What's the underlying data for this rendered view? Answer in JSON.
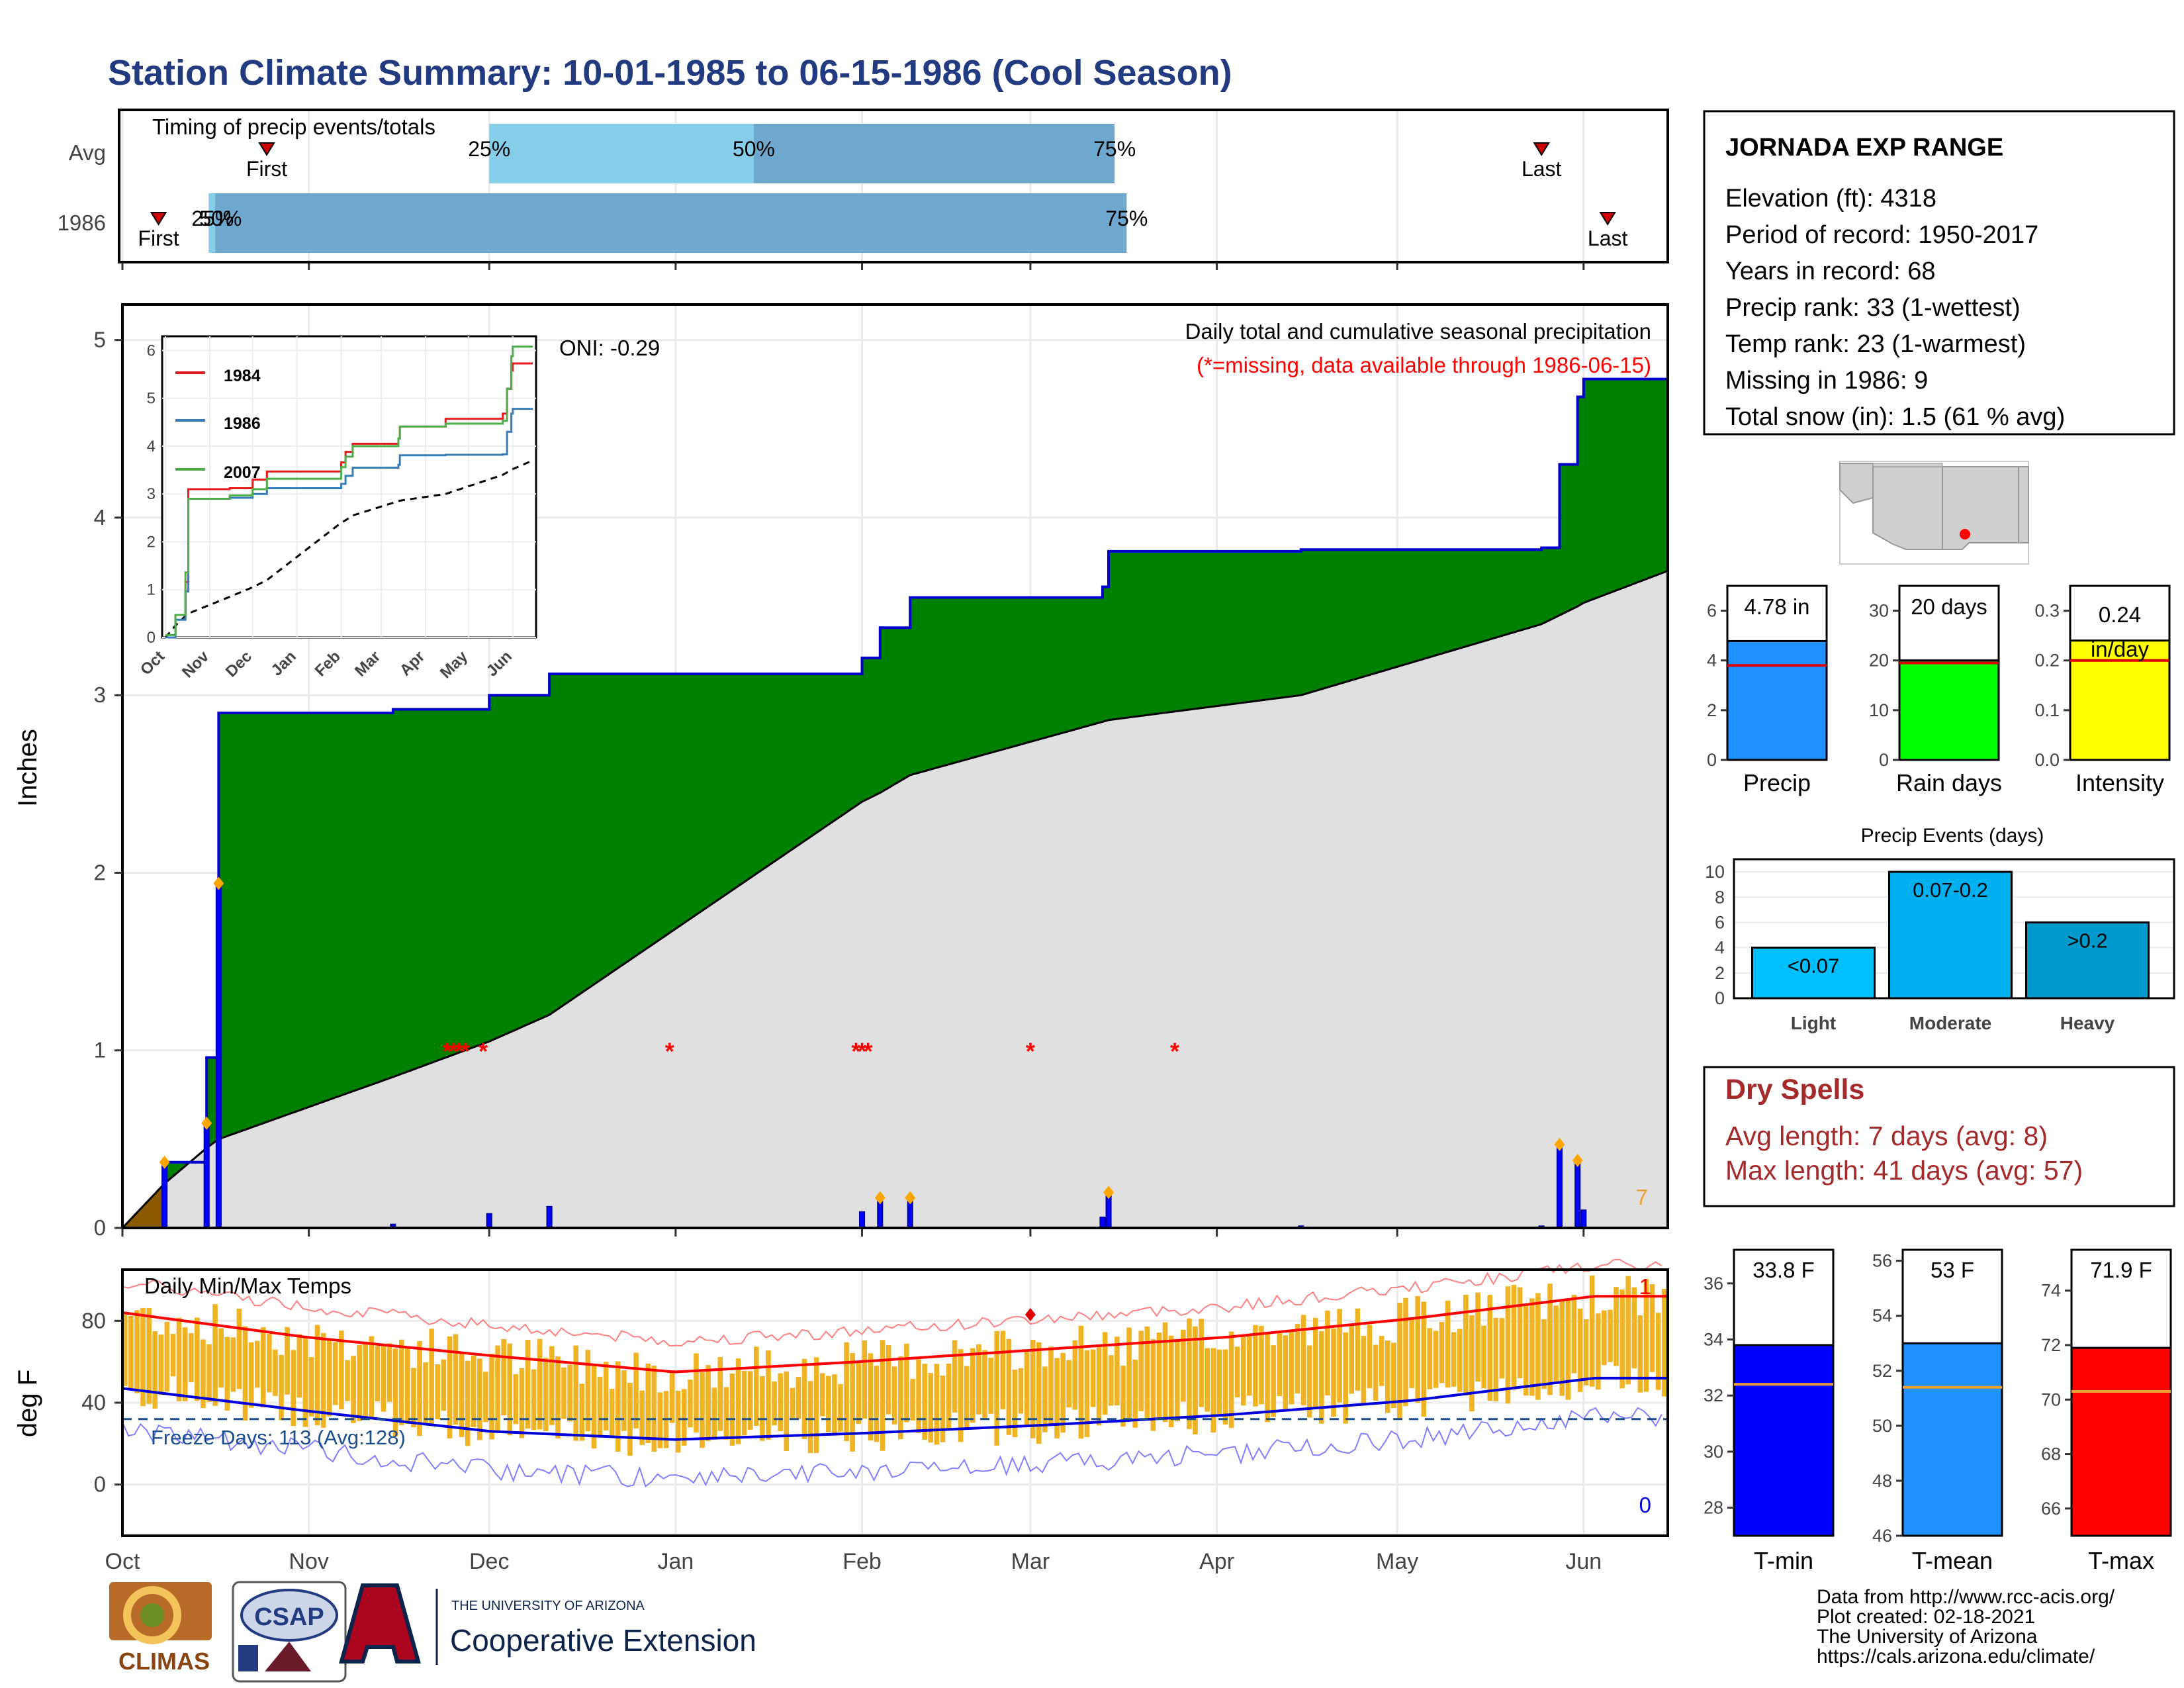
{
  "title": "Station Climate Summary: 10-01-1985 to 06-15-1986 (Cool Season)",
  "timing_panel": {
    "label": "Timing of precip events/totals",
    "rows": [
      {
        "name": "Avg",
        "first": "First",
        "last": "Last",
        "q25": "25%",
        "q50": "50%",
        "q75": "75%"
      },
      {
        "name": "1986",
        "first": "First",
        "last": "Last",
        "q25": "25%",
        "q50": "50%",
        "q75": "75%"
      }
    ],
    "colors": {
      "light": "#87ceeb",
      "mid": "#6fa8cf"
    }
  },
  "main_panel": {
    "ylabel": "Inches",
    "oni": "ONI: -0.29",
    "subtitle": "Daily total and cumulative seasonal precipitation",
    "missing_note": "(*=missing, data available through 1986-06-15)",
    "count_right": "7",
    "colors": {
      "cumulative": "#008000",
      "normal": "#e0e0e0",
      "bars": "#0000ff",
      "line": "#0000cc",
      "missing": "#ff0000"
    }
  },
  "inset": {
    "legend": [
      "1984",
      "1986",
      "2007"
    ],
    "colors": [
      "#e41a1c",
      "#377eb8",
      "#4daf4a"
    ]
  },
  "temp_panel": {
    "label": "Daily Min/Max Temps",
    "ylabel": "deg F",
    "freeze": "Freeze Days: 113 (Avg:128)",
    "count_top": "1",
    "count_bottom": "0",
    "colors": {
      "bars": "#f0b323",
      "max": "#ff0000",
      "min": "#0000dd"
    }
  },
  "months": [
    "Oct",
    "Nov",
    "Dec",
    "Jan",
    "Feb",
    "Mar",
    "Apr",
    "May",
    "Jun"
  ],
  "station": {
    "name": "JORNADA EXP RANGE",
    "lines": [
      "Elevation (ft): 4318",
      "Period of record: 1950-2017",
      "Years in record: 68",
      "Precip rank: 33 (1-wettest)",
      "Temp rank: 23 (1-warmest)",
      "Missing in 1986: 9",
      "Total snow (in): 1.5 (61 % avg)"
    ]
  },
  "precip_stats": [
    {
      "name": "Precip",
      "value": "4.78 in",
      "color": "#1e90ff"
    },
    {
      "name": "Rain days",
      "value": "20 days",
      "color": "#00ff00"
    },
    {
      "name": "Intensity",
      "value": "0.24 in/day",
      "color": "#ffff00"
    }
  ],
  "events": {
    "title": "Precip Events (days)",
    "bars": [
      {
        "name": "Light",
        "label": "<0.07",
        "value": 4
      },
      {
        "name": "Moderate",
        "label": "0.07-0.2",
        "value": 10
      },
      {
        "name": "Heavy",
        "label": ">0.2",
        "value": 6
      }
    ]
  },
  "dry_spells": {
    "title": "Dry Spells",
    "avg": "Avg length: 7 days (avg: 8)",
    "max": "Max length: 41 days (avg: 57)"
  },
  "temp_stats": [
    {
      "name": "T-min",
      "value": "33.8 F",
      "color": "#0000ff"
    },
    {
      "name": "T-mean",
      "value": "53 F",
      "color": "#1e90ff"
    },
    {
      "name": "T-max",
      "value": "71.9 F",
      "color": "#ff0000"
    }
  ],
  "footer": {
    "lines": [
      "Data from http://www.rcc-acis.org/",
      "Plot created: 02-18-2021",
      "The University of Arizona",
      "https://cals.arizona.edu/climate/"
    ],
    "logo_climas": "CLIMAS",
    "logo_csap": "CSAP",
    "ua_small": "THE UNIVERSITY OF ARIZONA",
    "ua_big": "Cooperative Extension"
  },
  "chart_data": [
    {
      "type": "bar",
      "title": "Timing of precip events/totals",
      "categories": [
        "Avg",
        "1986"
      ],
      "series": [
        {
          "name": "First",
          "values": [
            "Oct 25",
            "Oct 7"
          ]
        },
        {
          "name": "25%",
          "values": [
            "Dec 1",
            "Oct 16"
          ]
        },
        {
          "name": "50%",
          "values": [
            "Jan 14",
            "Oct 16"
          ]
        },
        {
          "name": "75%",
          "values": [
            "Mar 15",
            "Mar 17"
          ]
        },
        {
          "name": "Last",
          "values": [
            "May 25",
            "Jun 5"
          ]
        }
      ]
    },
    {
      "type": "area",
      "title": "Daily total and cumulative seasonal precipitation",
      "ylabel": "Inches",
      "x": [
        "10-01",
        "10-08",
        "10-15",
        "10-17",
        "11-15",
        "12-01",
        "12-11",
        "02-01",
        "02-04",
        "02-09",
        "03-13",
        "03-14",
        "04-15",
        "05-25",
        "05-28",
        "05-31",
        "06-01",
        "06-15"
      ],
      "series": [
        {
          "name": "1986",
          "values": [
            0,
            0.37,
            0.96,
            2.9,
            2.92,
            3.0,
            3.12,
            3.21,
            3.38,
            3.55,
            3.61,
            3.81,
            3.82,
            3.83,
            4.3,
            4.68,
            4.78,
            4.78
          ]
        },
        {
          "name": "Avg",
          "values": [
            0,
            0.25,
            0.45,
            0.5,
            0.85,
            1.05,
            1.2,
            2.4,
            2.45,
            2.55,
            2.85,
            2.86,
            3.0,
            3.4,
            3.45,
            3.5,
            3.52,
            3.7
          ]
        }
      ],
      "ylim": [
        0,
        5.2
      ]
    },
    {
      "type": "line",
      "title": "Daily Min/Max Temps",
      "ylabel": "deg F",
      "x": [
        "Oct",
        "Nov",
        "Dec",
        "Jan",
        "Feb",
        "Mar",
        "Apr",
        "May",
        "Jun"
      ],
      "series": [
        {
          "name": "Avg Max",
          "values": [
            84,
            72,
            63,
            55,
            60,
            66,
            72,
            81,
            92
          ]
        },
        {
          "name": "Avg Min",
          "values": [
            47,
            36,
            26,
            22,
            25,
            29,
            34,
            41,
            52
          ]
        }
      ],
      "ylim": [
        -25,
        105
      ]
    },
    {
      "type": "bar",
      "categories": [
        "Precip",
        "Rain days",
        "Intensity"
      ],
      "values": [
        4.78,
        20,
        0.24
      ]
    },
    {
      "type": "bar",
      "title": "Precip Events (days)",
      "categories": [
        "Light",
        "Moderate",
        "Heavy"
      ],
      "values": [
        4,
        10,
        6
      ]
    },
    {
      "type": "bar",
      "categories": [
        "T-min",
        "T-mean",
        "T-max"
      ],
      "values": [
        33.8,
        53,
        71.9
      ]
    }
  ]
}
